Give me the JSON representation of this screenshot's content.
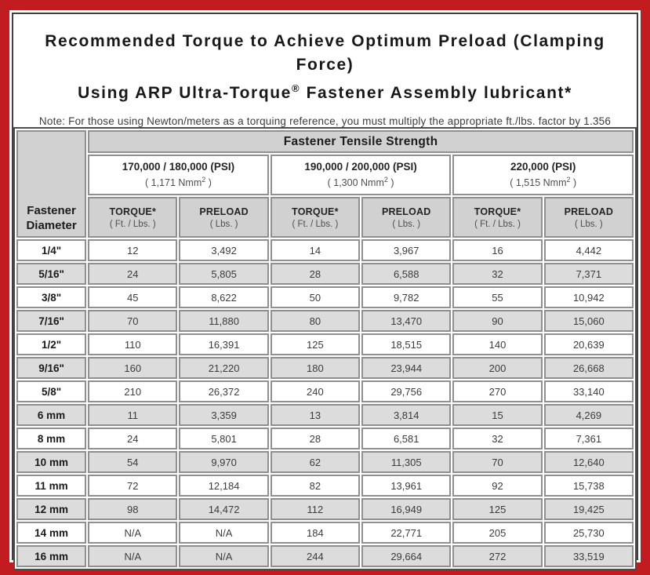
{
  "page": {
    "title_line1": "Recommended Torque to Achieve Optimum Preload (Clamping Force)",
    "title_line2_pre": "Using ARP Ultra-Torque",
    "title_line2_sup": "®",
    "title_line2_post": " Fastener Assembly lubricant*",
    "note": "Note: For those using Newton/meters as a torquing reference, you must multiply the appropriate ft./lbs. factor by 1.356"
  },
  "colors": {
    "border_red": "#c21b20",
    "frame_dark": "#3f3f3f",
    "header_gray": "#d1d1d1",
    "row_alt_gray": "#dcdcdc",
    "cell_border_gray": "#8f8f8f"
  },
  "table": {
    "corner_header_line1": "Fastener",
    "corner_header_line2": "Diameter",
    "tensile_header": "Fastener Tensile Strength",
    "groups": [
      {
        "psi": "170,000 / 180,000 (PSI)",
        "nmm_pre": "( 1,171 Nmm",
        "nmm_sup": "2",
        "nmm_post": " )"
      },
      {
        "psi": "190,000 / 200,000 (PSI)",
        "nmm_pre": "( 1,300 Nmm",
        "nmm_sup": "2",
        "nmm_post": " )"
      },
      {
        "psi": "220,000 (PSI)",
        "nmm_pre": "( 1,515 Nmm",
        "nmm_sup": "2",
        "nmm_post": " )"
      }
    ],
    "column_headers": {
      "torque_label": "TORQUE*",
      "torque_unit": "( Ft. / Lbs. )",
      "preload_label": "PRELOAD",
      "preload_unit": "( Lbs. )"
    },
    "rows": [
      {
        "diameter": "1/4\"",
        "values": [
          "12",
          "3,492",
          "14",
          "3,967",
          "16",
          "4,442"
        ]
      },
      {
        "diameter": "5/16\"",
        "values": [
          "24",
          "5,805",
          "28",
          "6,588",
          "32",
          "7,371"
        ]
      },
      {
        "diameter": "3/8\"",
        "values": [
          "45",
          "8,622",
          "50",
          "9,782",
          "55",
          "10,942"
        ]
      },
      {
        "diameter": "7/16\"",
        "values": [
          "70",
          "11,880",
          "80",
          "13,470",
          "90",
          "15,060"
        ]
      },
      {
        "diameter": "1/2\"",
        "values": [
          "110",
          "16,391",
          "125",
          "18,515",
          "140",
          "20,639"
        ]
      },
      {
        "diameter": "9/16\"",
        "values": [
          "160",
          "21,220",
          "180",
          "23,944",
          "200",
          "26,668"
        ]
      },
      {
        "diameter": "5/8\"",
        "values": [
          "210",
          "26,372",
          "240",
          "29,756",
          "270",
          "33,140"
        ]
      },
      {
        "diameter": "6 mm",
        "values": [
          "11",
          "3,359",
          "13",
          "3,814",
          "15",
          "4,269"
        ]
      },
      {
        "diameter": "8 mm",
        "values": [
          "24",
          "5,801",
          "28",
          "6,581",
          "32",
          "7,361"
        ]
      },
      {
        "diameter": "10 mm",
        "values": [
          "54",
          "9,970",
          "62",
          "11,305",
          "70",
          "12,640"
        ]
      },
      {
        "diameter": "11 mm",
        "values": [
          "72",
          "12,184",
          "82",
          "13,961",
          "92",
          "15,738"
        ]
      },
      {
        "diameter": "12 mm",
        "values": [
          "98",
          "14,472",
          "112",
          "16,949",
          "125",
          "19,425"
        ]
      },
      {
        "diameter": "14 mm",
        "values": [
          "N/A",
          "N/A",
          "184",
          "22,771",
          "205",
          "25,730"
        ]
      },
      {
        "diameter": "16 mm",
        "values": [
          "N/A",
          "N/A",
          "244",
          "29,664",
          "272",
          "33,519"
        ]
      }
    ]
  }
}
